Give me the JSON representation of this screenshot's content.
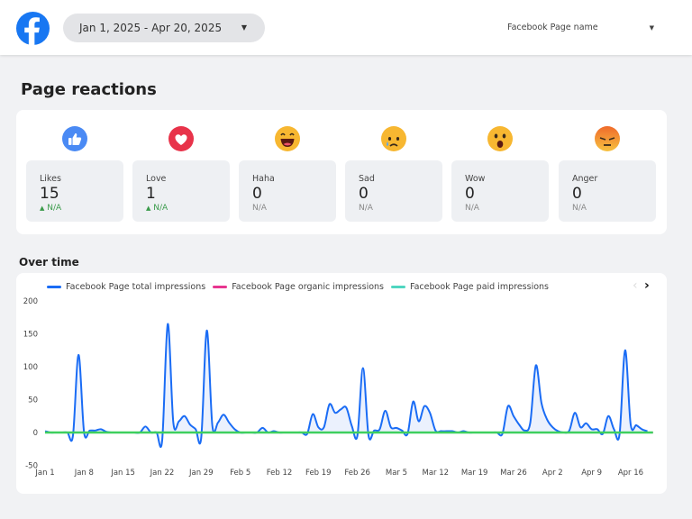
{
  "header": {
    "date_range": "Jan 1, 2025 - Apr 20, 2025",
    "page_select_label": "Facebook Page name"
  },
  "reactions": {
    "title": "Page reactions",
    "items": [
      {
        "label": "Likes",
        "value": "15",
        "change": "N/A",
        "trend": "up",
        "icon": "like-icon",
        "color": "#4a8af4"
      },
      {
        "label": "Love",
        "value": "1",
        "change": "N/A",
        "trend": "up",
        "icon": "heart-icon",
        "color": "#e8334a"
      },
      {
        "label": "Haha",
        "value": "0",
        "change": "N/A",
        "trend": "none",
        "icon": "haha-emoji-icon",
        "color": "#f7b731"
      },
      {
        "label": "Sad",
        "value": "0",
        "change": "N/A",
        "trend": "none",
        "icon": "sad-emoji-icon",
        "color": "#f7b731"
      },
      {
        "label": "Wow",
        "value": "0",
        "change": "N/A",
        "trend": "none",
        "icon": "wow-emoji-icon",
        "color": "#f7b731"
      },
      {
        "label": "Anger",
        "value": "0",
        "change": "N/A",
        "trend": "none",
        "icon": "angry-emoji-icon",
        "color": "#ef6a2b"
      }
    ]
  },
  "over_time": {
    "title": "Over time"
  },
  "chart_data": {
    "type": "line",
    "x_start": "Jan 1",
    "x_end": "Apr 20",
    "xticks": [
      "Jan 1",
      "Jan 8",
      "Jan 15",
      "Jan 22",
      "Jan 29",
      "Feb 5",
      "Feb 12",
      "Feb 19",
      "Feb 26",
      "Mar 5",
      "Mar 12",
      "Mar 19",
      "Mar 26",
      "Apr 2",
      "Apr 9",
      "Apr 16"
    ],
    "yticks": [
      200,
      150,
      100,
      50,
      0,
      -50
    ],
    "ylim": [
      -50,
      200
    ],
    "legend": "top-left",
    "series": [
      {
        "name": "Facebook Page total impressions",
        "color": "#1a6cf5",
        "values": [
          2,
          0,
          0,
          0,
          0,
          -5,
          118,
          0,
          3,
          3,
          5,
          1,
          0,
          0,
          0,
          0,
          0,
          0,
          9,
          0,
          0,
          -12,
          165,
          15,
          17,
          25,
          12,
          5,
          -8,
          155,
          10,
          15,
          27,
          15,
          5,
          0,
          0,
          0,
          0,
          7,
          0,
          2,
          0,
          0,
          0,
          0,
          0,
          -2,
          28,
          8,
          8,
          43,
          30,
          35,
          38,
          10,
          -5,
          98,
          -5,
          3,
          5,
          33,
          8,
          7,
          3,
          -2,
          47,
          17,
          40,
          30,
          3,
          2,
          2,
          2,
          0,
          2,
          0,
          0,
          0,
          0,
          0,
          0,
          -2,
          40,
          25,
          12,
          3,
          15,
          102,
          45,
          20,
          8,
          2,
          0,
          3,
          30,
          8,
          14,
          5,
          5,
          -2,
          25,
          5,
          -3,
          125,
          12,
          11,
          5,
          2
        ]
      },
      {
        "name": "Facebook Page organic impressions",
        "color": "#e8358f",
        "values": [
          0,
          0,
          0,
          0,
          0,
          0,
          0,
          0,
          0,
          0,
          0,
          0,
          0,
          0,
          0,
          0,
          0,
          0,
          0,
          0,
          0,
          0,
          0,
          0,
          0,
          0,
          0,
          0,
          0,
          0,
          0,
          0,
          0,
          0,
          0,
          0,
          0,
          0,
          0,
          0,
          0,
          0,
          0,
          0,
          0,
          0,
          0,
          0,
          0,
          0,
          0,
          0,
          0,
          0,
          0,
          0,
          0,
          0,
          0,
          0,
          0,
          0,
          0,
          0,
          0,
          0,
          0,
          0,
          0,
          0,
          0,
          0,
          0,
          0,
          0,
          0,
          0,
          0,
          0,
          0,
          0,
          0,
          0,
          0,
          0,
          0,
          0,
          0,
          0,
          0,
          0,
          0,
          0,
          0,
          0,
          0,
          0,
          0,
          0,
          0,
          0,
          0,
          0,
          0,
          0,
          0,
          0,
          0,
          0,
          0
        ]
      },
      {
        "name": "Facebook Page paid impressions",
        "color": "#4fd6c0",
        "values": [
          0,
          0,
          0,
          0,
          0,
          0,
          0,
          0,
          0,
          0,
          0,
          0,
          0,
          0,
          0,
          0,
          0,
          0,
          0,
          0,
          0,
          0,
          0,
          0,
          0,
          0,
          0,
          0,
          0,
          0,
          0,
          0,
          0,
          0,
          0,
          0,
          0,
          0,
          0,
          0,
          0,
          0,
          0,
          0,
          0,
          0,
          0,
          0,
          0,
          0,
          0,
          0,
          0,
          0,
          0,
          0,
          0,
          0,
          0,
          0,
          0,
          0,
          0,
          0,
          0,
          0,
          0,
          0,
          0,
          0,
          0,
          0,
          0,
          0,
          0,
          0,
          0,
          0,
          0,
          0,
          0,
          0,
          0,
          0,
          0,
          0,
          0,
          0,
          0,
          0,
          0,
          0,
          0,
          0,
          0,
          0,
          0,
          0,
          0,
          0,
          0,
          0,
          0,
          0,
          0,
          0,
          0,
          0,
          0,
          0
        ]
      }
    ]
  }
}
